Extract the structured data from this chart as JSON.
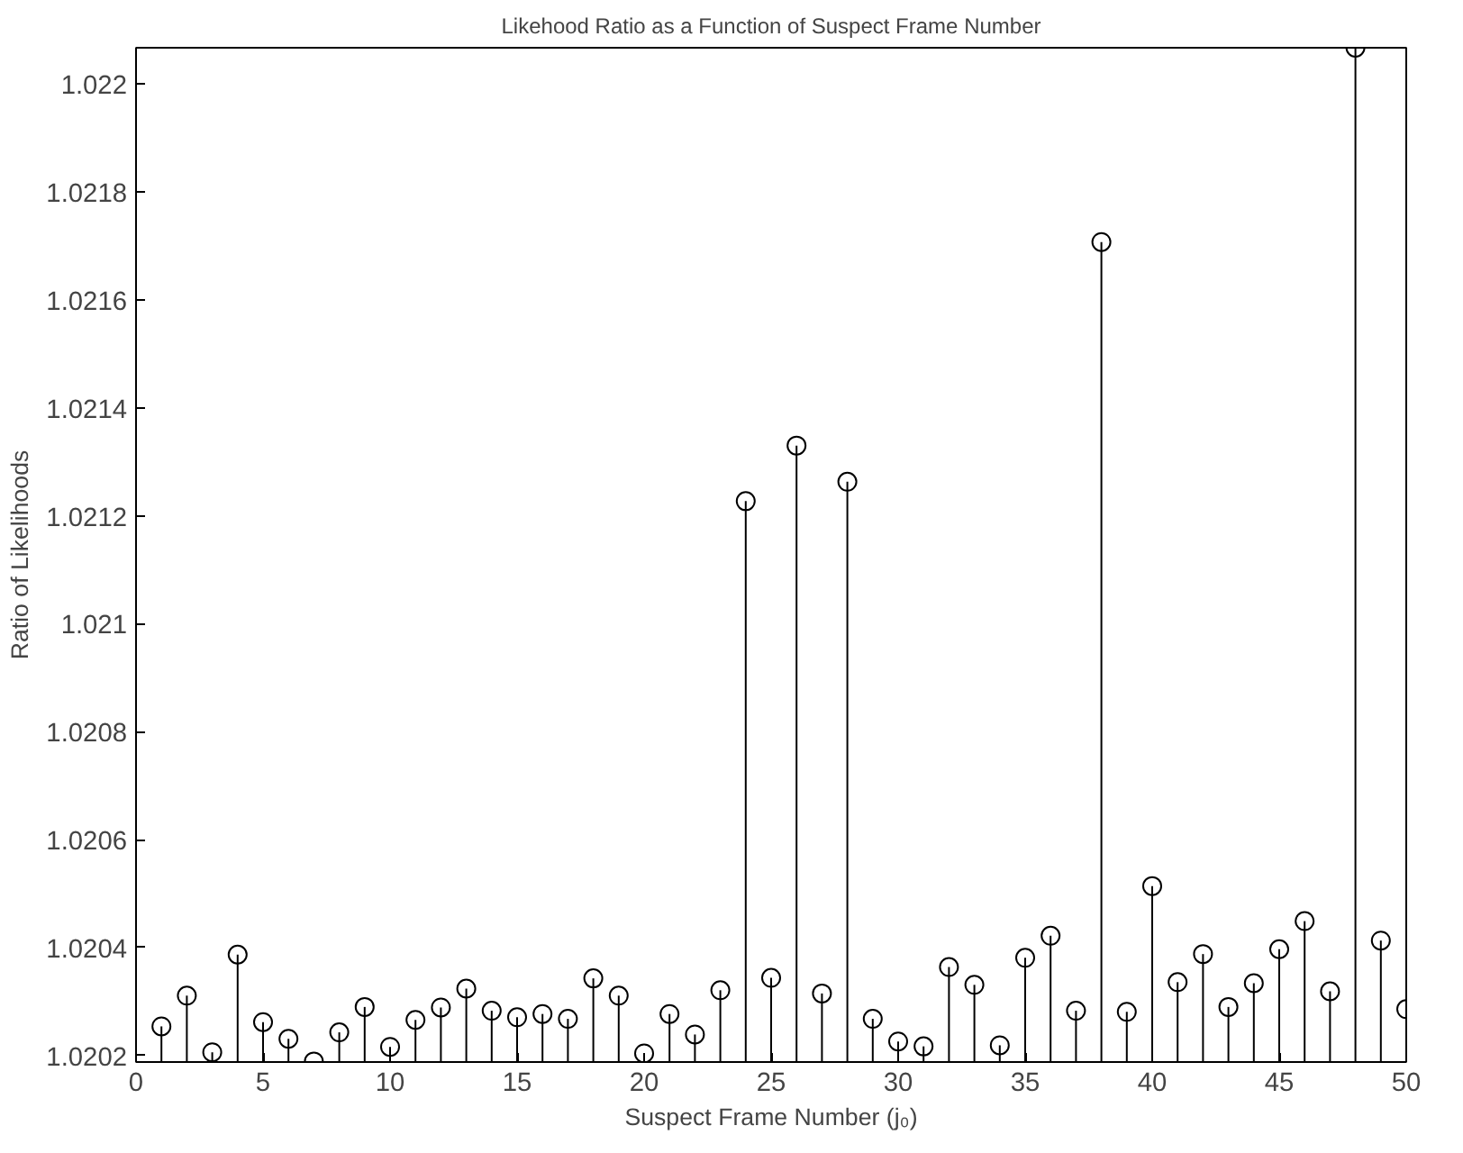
{
  "chart_data": {
    "type": "lollipop",
    "title": "Likehood Ratio as a Function of Suspect Frame Number",
    "xlabel": "Suspect Frame Number (j₀)",
    "ylabel": "Ratio of Likelihoods",
    "x": [
      1,
      2,
      3,
      4,
      5,
      6,
      7,
      8,
      9,
      10,
      11,
      12,
      13,
      14,
      15,
      16,
      17,
      18,
      19,
      20,
      21,
      22,
      23,
      24,
      25,
      26,
      27,
      28,
      29,
      30,
      31,
      32,
      33,
      34,
      35,
      36,
      37,
      38,
      39,
      40,
      41,
      42,
      43,
      44,
      45,
      46,
      47,
      48,
      49,
      50
    ],
    "series": [
      {
        "color": "#000000",
        "values": [
          1.020254,
          1.020311,
          1.020206,
          1.020387,
          1.020262,
          1.020231,
          1.020189,
          1.020243,
          1.02029,
          1.020216,
          1.020266,
          1.020289,
          1.020324,
          1.020283,
          1.020271,
          1.020277,
          1.020268,
          1.020343,
          1.020311,
          1.020204,
          1.020277,
          1.020239,
          1.020321,
          1.021227,
          1.020344,
          1.02133,
          1.020315,
          1.021263,
          1.020268,
          1.020226,
          1.020217,
          1.020364,
          1.020331,
          1.020219,
          1.020381,
          1.020422,
          1.020283,
          1.021707,
          1.020281,
          1.020514,
          1.020336,
          1.020388,
          1.02029,
          1.020334,
          1.020397,
          1.020449,
          1.020319,
          1.022067,
          1.020413,
          1.020286
        ]
      }
    ],
    "xlim": [
      0,
      50
    ],
    "xticks": [
      0,
      5,
      10,
      15,
      20,
      25,
      30,
      35,
      40,
      45,
      50
    ],
    "ylim": [
      1.020188,
      1.022067
    ],
    "yticks": [
      1.0202,
      1.0204,
      1.0206,
      1.0208,
      1.021,
      1.0212,
      1.0214,
      1.0216,
      1.0218,
      1.022
    ],
    "marker": "circle",
    "grid": false
  }
}
